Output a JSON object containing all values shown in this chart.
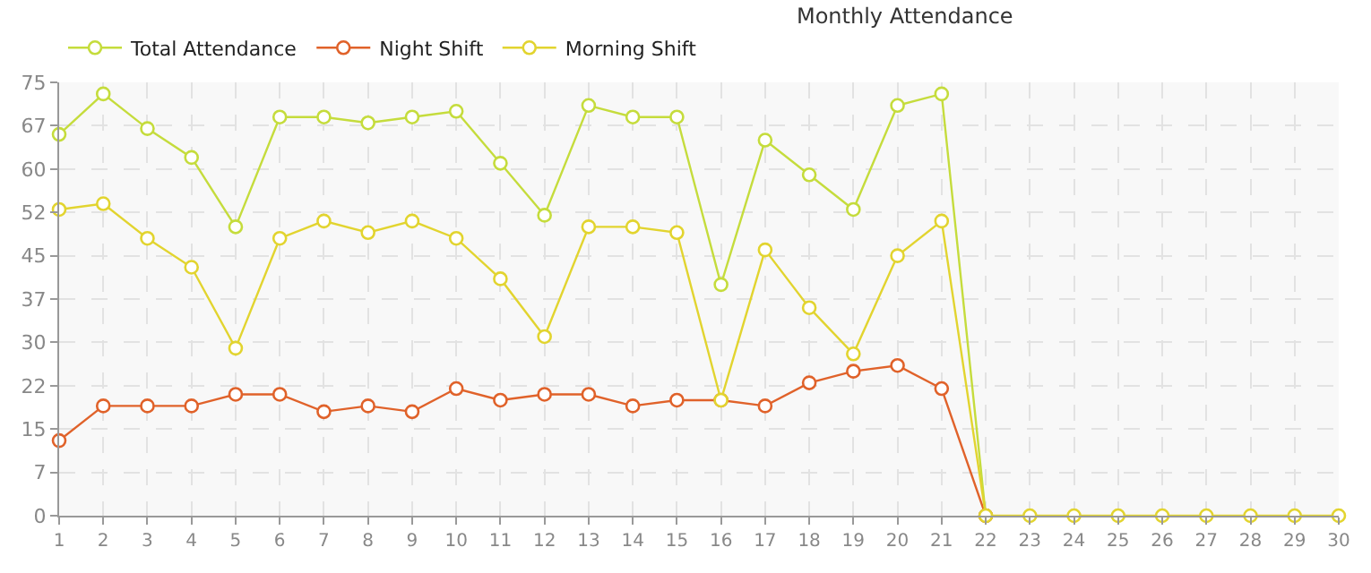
{
  "chart_data": {
    "type": "line",
    "title": "Monthly Attendance",
    "x": [
      1,
      2,
      3,
      4,
      5,
      6,
      7,
      8,
      9,
      10,
      11,
      12,
      13,
      14,
      15,
      16,
      17,
      18,
      19,
      20,
      21,
      22,
      23,
      24,
      25,
      26,
      27,
      28,
      29,
      30
    ],
    "series": [
      {
        "name": "Total Attendance",
        "color": "#c5dc3c",
        "values": [
          66,
          73,
          67,
          62,
          50,
          69,
          69,
          68,
          69,
          70,
          61,
          52,
          71,
          69,
          69,
          40,
          65,
          59,
          53,
          71,
          73,
          0,
          null,
          null,
          null,
          null,
          null,
          null,
          null,
          null
        ]
      },
      {
        "name": "Night Shift",
        "color": "#e0622a",
        "values": [
          13,
          19,
          19,
          19,
          21,
          21,
          18,
          19,
          18,
          22,
          20,
          21,
          21,
          19,
          20,
          20,
          19,
          23,
          25,
          26,
          22,
          0,
          null,
          null,
          null,
          null,
          null,
          null,
          null,
          null
        ]
      },
      {
        "name": "Morning Shift",
        "color": "#e2d42f",
        "values": [
          53,
          54,
          48,
          43,
          29,
          48,
          51,
          49,
          51,
          48,
          41,
          31,
          50,
          50,
          49,
          20,
          46,
          36,
          28,
          45,
          51,
          0,
          0,
          0,
          0,
          0,
          0,
          0,
          0,
          0
        ]
      }
    ],
    "xlim": [
      1,
      30
    ],
    "xticks": [
      1,
      2,
      3,
      4,
      5,
      6,
      7,
      8,
      9,
      10,
      11,
      12,
      13,
      14,
      15,
      16,
      17,
      18,
      19,
      20,
      21,
      22,
      23,
      24,
      25,
      26,
      27,
      28,
      29,
      30
    ],
    "ylim": [
      0,
      75
    ],
    "yticks": [
      0,
      {
        "value": 7.5,
        "label": "7"
      },
      15,
      {
        "value": 22.5,
        "label": "22"
      },
      30,
      {
        "value": 37.5,
        "label": "37"
      },
      45,
      {
        "value": 52.5,
        "label": "52"
      },
      60,
      {
        "value": 67.5,
        "label": "67"
      },
      75
    ],
    "grid": true,
    "legend": "top left",
    "marker": "circle",
    "line_style": "solid"
  }
}
